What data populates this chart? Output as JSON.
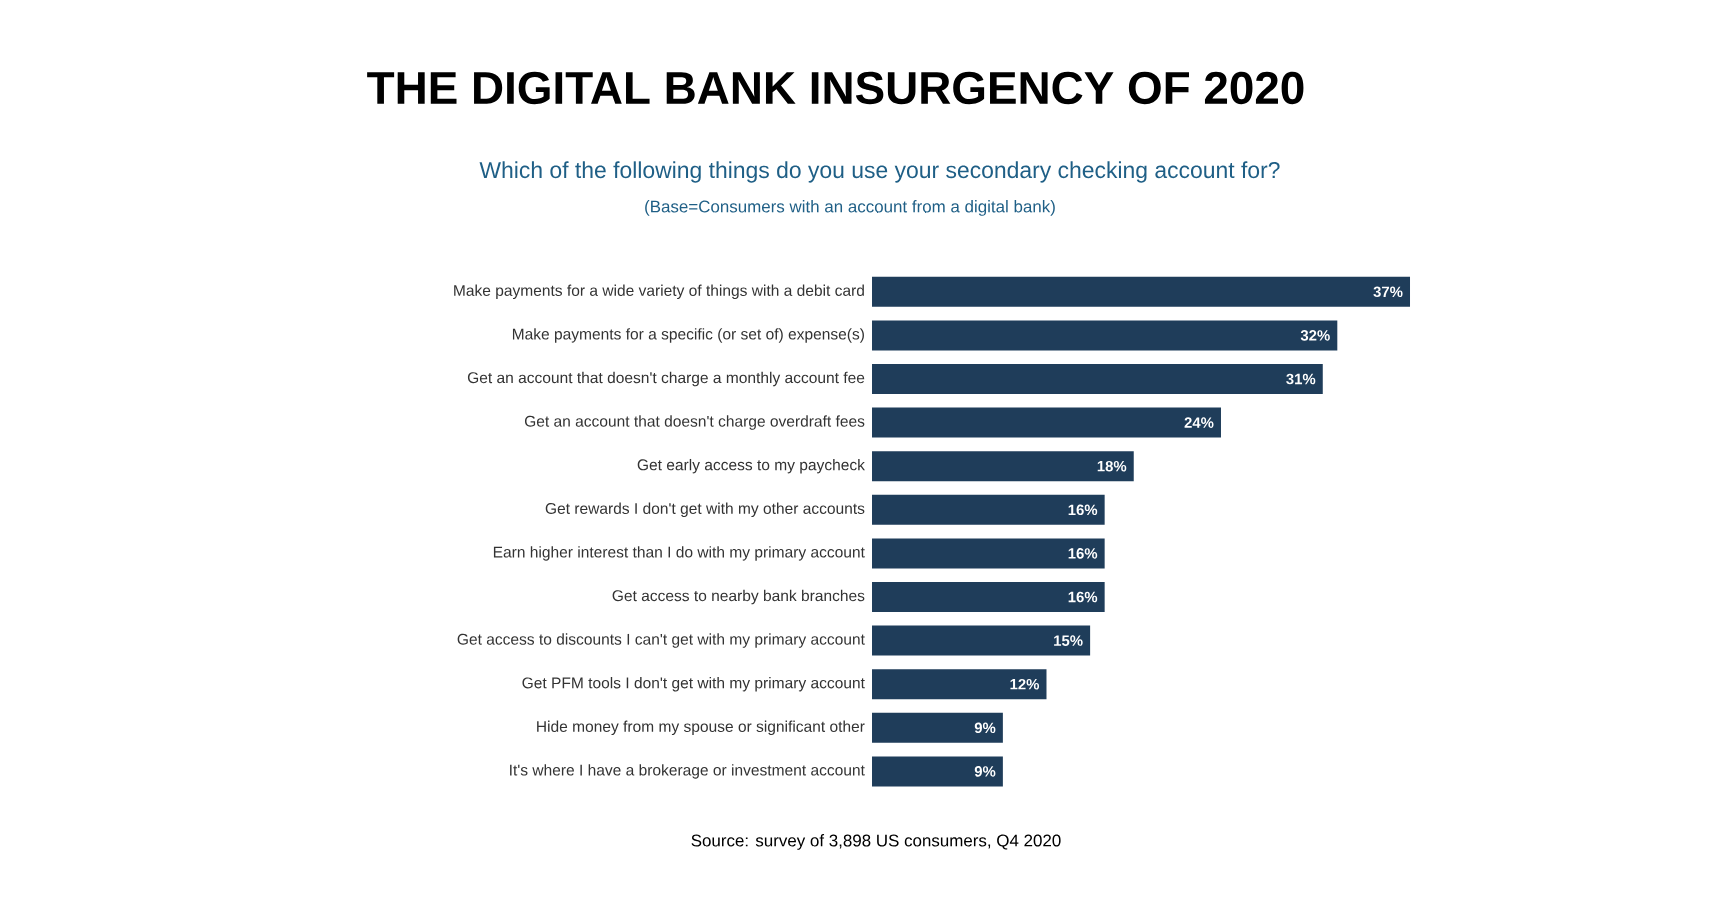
{
  "chart_data": {
    "type": "bar",
    "orientation": "horizontal",
    "title": "THE DIGITAL BANK INSURGENCY OF 2020",
    "subtitle": "Which of the following things do you use your secondary checking account for?",
    "annotations": [
      "(Base=Consumers with an account from a digital bank)",
      "Source: survey of 3,898 US consumers, Q4 2020"
    ],
    "categories": [
      "Make payments for a wide variety of things with a debit card",
      "Make payments for a specific (or set of) expense(s)",
      "Get an account that doesn't charge a monthly account fee",
      "Get an account that doesn't charge overdraft fees",
      "Get early access to my paycheck",
      "Get rewards I don't get with my other accounts",
      "Earn higher interest than I do with my primary account",
      "Get access to nearby bank branches",
      "Get access to discounts I can't get with my primary account",
      "Get PFM tools I don't get with my primary account",
      "Hide money from my spouse or significant other",
      "It's where I have a brokerage or investment account"
    ],
    "values": [
      37,
      32,
      31,
      24,
      18,
      16,
      16,
      16,
      15,
      12,
      9,
      9
    ],
    "value_labels": [
      "37%",
      "32%",
      "31%",
      "24%",
      "18%",
      "16%",
      "16%",
      "16%",
      "15%",
      "12%",
      "9%",
      "9%"
    ],
    "color": "#1f3d5a"
  }
}
